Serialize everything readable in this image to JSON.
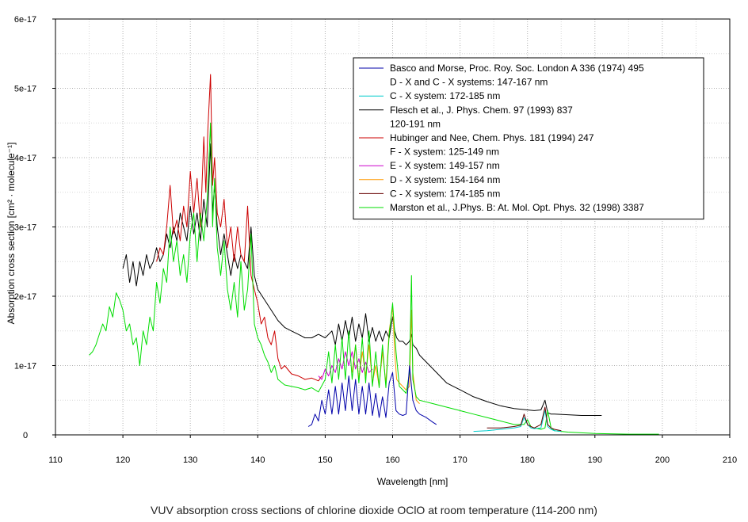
{
  "caption": "VUV absorption cross sections of chlorine dioxide OClO at room temperature (114-200 nm)",
  "chart_data": {
    "type": "line",
    "xlabel": "Wavelength [nm]",
    "ylabel": "Absorption cross section [cm² · molecule⁻¹]",
    "xlim": [
      110,
      210
    ],
    "ylim": [
      0,
      6e-17
    ],
    "x_ticks": [
      110,
      120,
      130,
      140,
      150,
      160,
      170,
      180,
      190,
      200,
      210
    ],
    "x_tick_labels": [
      "110",
      "120",
      "130",
      "140",
      "150",
      "160",
      "170",
      "180",
      "190",
      "200",
      "210"
    ],
    "y_ticks": [
      0,
      1e-17,
      2e-17,
      3e-17,
      4e-17,
      5e-17,
      6e-17
    ],
    "y_tick_labels": [
      "0",
      "1e-17",
      "2e-17",
      "3e-17",
      "4e-17",
      "5e-17",
      "6e-17"
    ],
    "grid": true,
    "legend_position": "top-right",
    "legend": [
      {
        "text": "Basco and Morse,  Proc. Roy. Soc. London A 336 (1974) 495",
        "color": "#0000aa",
        "line": true
      },
      {
        "text": "D - X and C - X systems: 147-167 nm",
        "color": "",
        "line": false
      },
      {
        "text": "C  - X system: 172-185 nm",
        "color": "#00cccc",
        "line": true
      },
      {
        "text": "Flesch et al., J. Phys. Chem. 97 (1993) 837",
        "color": "#000000",
        "line": true
      },
      {
        "text": "120-191 nm",
        "color": "",
        "line": false
      },
      {
        "text": "Hubinger and Nee,  Chem. Phys. 181 (1994) 247",
        "color": "#cc0000",
        "line": true
      },
      {
        "text": "F - X system: 125-149 nm",
        "color": "",
        "line": false
      },
      {
        "text": "E - X system: 149-157 nm",
        "color": "#cc00cc",
        "line": true
      },
      {
        "text": "D - X system: 154-164 nm",
        "color": "#ff9900",
        "line": true
      },
      {
        "text": "C - X system: 174-185 nm",
        "color": "#660000",
        "line": true
      },
      {
        "text": "Marston et al., J.Phys. B: At. Mol. Opt. Phys. 32 (1998) 3387",
        "color": "#00dd00",
        "line": true
      }
    ],
    "series": [
      {
        "name": "Flesch et al., J. Phys. Chem. 97 (1993) 837",
        "color": "#000000",
        "width": 1,
        "x": [
          120,
          120.5,
          121,
          121.5,
          122,
          122.5,
          123,
          123.5,
          124,
          124.5,
          125,
          125.5,
          126,
          126.5,
          127,
          127.5,
          128,
          128.5,
          129,
          129.5,
          130,
          130.5,
          131,
          131.5,
          132,
          132.5,
          133,
          133.3,
          133.6,
          134,
          134.5,
          135,
          135.5,
          136,
          136.5,
          137,
          137.5,
          138,
          138.5,
          139,
          139.5,
          140,
          141,
          142,
          143,
          144,
          145,
          146,
          147,
          148,
          149,
          150,
          151,
          151.5,
          152,
          152.5,
          153,
          153.5,
          154,
          154.5,
          155,
          155.5,
          156,
          156.5,
          157,
          157.5,
          158,
          158.5,
          159,
          159.5,
          160,
          160.3,
          160.6,
          161,
          161.5,
          162,
          162.5,
          162.8,
          163,
          163.5,
          164,
          165,
          166,
          167,
          168,
          169,
          170,
          172,
          174,
          176,
          178,
          180,
          181,
          182,
          182.6,
          183,
          183.5,
          184,
          186,
          188,
          191
        ],
        "y": [
          2.4e-17,
          2.6e-17,
          2.2e-17,
          2.5e-17,
          2.15e-17,
          2.5e-17,
          2.3e-17,
          2.6e-17,
          2.4e-17,
          2.5e-17,
          2.7e-17,
          2.5e-17,
          2.6e-17,
          2.9e-17,
          2.7e-17,
          3e-17,
          2.8e-17,
          3.2e-17,
          3e-17,
          2.8e-17,
          3.3e-17,
          2.9e-17,
          3.2e-17,
          2.8e-17,
          3.4e-17,
          3e-17,
          4.2e-17,
          3.2e-17,
          3.6e-17,
          3e-17,
          2.6e-17,
          2.9e-17,
          2.6e-17,
          2.3e-17,
          2.6e-17,
          2.4e-17,
          2.6e-17,
          2.5e-17,
          2.4e-17,
          3e-17,
          2.3e-17,
          2.1e-17,
          1.95e-17,
          1.8e-17,
          1.65e-17,
          1.55e-17,
          1.5e-17,
          1.45e-17,
          1.4e-17,
          1.4e-17,
          1.45e-17,
          1.4e-17,
          1.5e-17,
          1.3e-17,
          1.6e-17,
          1.35e-17,
          1.65e-17,
          1.4e-17,
          1.7e-17,
          1.35e-17,
          1.6e-17,
          1.4e-17,
          1.75e-17,
          1.35e-17,
          1.55e-17,
          1.35e-17,
          1.5e-17,
          1.35e-17,
          1.5e-17,
          1.4e-17,
          1.7e-17,
          1.5e-17,
          1.4e-17,
          1.35e-17,
          1.35e-17,
          1.3e-17,
          1.35e-17,
          1.45e-17,
          1.3e-17,
          1.25e-17,
          1.15e-17,
          1.05e-17,
          9.5e-18,
          8.5e-18,
          7.5e-18,
          7e-18,
          6.5e-18,
          5.5e-18,
          4.8e-18,
          4.2e-18,
          3.8e-18,
          3.6e-18,
          3.5e-18,
          3.6e-18,
          5e-18,
          3.2e-18,
          3e-18,
          3e-18,
          2.9e-18,
          2.8e-18,
          2.8e-18
        ]
      },
      {
        "name": "Hubinger and Nee,  Chem. Phys. 181 (1994) 247",
        "color": "#cc0000",
        "width": 1,
        "x": [
          125,
          125.5,
          126,
          126.5,
          127,
          127.5,
          128,
          128.5,
          129,
          129.5,
          130,
          130.5,
          131,
          131.5,
          132,
          132.3,
          132.6,
          133,
          133.3,
          133.6,
          134,
          134.5,
          135,
          135.5,
          136,
          136.5,
          137,
          137.5,
          138,
          138.5,
          139,
          139.5,
          140,
          140.5,
          141,
          141.5,
          142,
          142.5,
          143,
          143.5,
          144,
          145,
          146,
          147,
          148,
          149,
          149.5
        ],
        "y": [
          2.5e-17,
          2.7e-17,
          2.6e-17,
          3e-17,
          3.6e-17,
          2.9e-17,
          3.1e-17,
          2.8e-17,
          3.3e-17,
          3e-17,
          3.8e-17,
          3.2e-17,
          3.7e-17,
          3e-17,
          4.3e-17,
          3.5e-17,
          4.4e-17,
          5.2e-17,
          3.6e-17,
          4e-17,
          3.2e-17,
          3e-17,
          3.4e-17,
          2.7e-17,
          3e-17,
          2.5e-17,
          3e-17,
          2.6e-17,
          2.5e-17,
          3.3e-17,
          2.3e-17,
          2.1e-17,
          1.9e-17,
          1.6e-17,
          1.7e-17,
          1.4e-17,
          1.3e-17,
          1.5e-17,
          1.1e-17,
          9.5e-18,
          1e-17,
          8.8e-18,
          8.5e-18,
          8e-18,
          8.2e-18,
          7.8e-18,
          8.5e-18
        ]
      },
      {
        "name": "E - X system: 149-157 nm",
        "color": "#cc00cc",
        "width": 1,
        "x": [
          149,
          149.5,
          150,
          150.5,
          151,
          151.5,
          152,
          152.5,
          153,
          153.5,
          154,
          154.5,
          155,
          155.5,
          156,
          156.5,
          157
        ],
        "y": [
          8.5e-18,
          8e-18,
          9.5e-18,
          8.5e-18,
          1e-17,
          9e-18,
          1.1e-17,
          9.5e-18,
          1.2e-17,
          1e-17,
          1.2e-17,
          9.5e-18,
          1.1e-17,
          9e-18,
          1.05e-17,
          9e-18,
          9.5e-18
        ]
      },
      {
        "name": "D - X system: 154-164 nm",
        "color": "#ff9900",
        "width": 1,
        "x": [
          154,
          154.5,
          155,
          155.5,
          156,
          156.5,
          157,
          157.5,
          158,
          158.5,
          159,
          159.5,
          160,
          160.3,
          160.6,
          161,
          161.5,
          162,
          162.5,
          162.8,
          163,
          163.5,
          164
        ],
        "y": [
          9e-18,
          1.3e-17,
          8e-18,
          1.2e-17,
          8.5e-18,
          1.3e-17,
          7.5e-18,
          1e-17,
          7e-18,
          1.2e-17,
          7.5e-18,
          1.5e-17,
          1.85e-17,
          1.2e-17,
          8e-18,
          7.5e-18,
          7e-18,
          6.5e-18,
          7e-18,
          1.8e-17,
          9e-18,
          5e-18,
          4.5e-18
        ]
      },
      {
        "name": "Marston et al., J.Phys. B: At. Mol. Opt. Phys. 32 (1998) 3387",
        "color": "#00dd00",
        "width": 1,
        "x": [
          115,
          115.5,
          116,
          116.5,
          117,
          117.5,
          118,
          118.5,
          119,
          119.5,
          120,
          120.5,
          121,
          121.5,
          122,
          122.5,
          123,
          123.5,
          124,
          124.5,
          125,
          125.5,
          126,
          126.5,
          127,
          127.5,
          128,
          128.5,
          129,
          129.5,
          130,
          130.5,
          131,
          131.5,
          132,
          132.5,
          133,
          133.3,
          133.6,
          134,
          134.5,
          135,
          135.5,
          136,
          136.5,
          137,
          137.5,
          138,
          138.5,
          139,
          139.5,
          140,
          140.5,
          141,
          141.5,
          142,
          142.5,
          143,
          144,
          145,
          146,
          147,
          148,
          149,
          150,
          150.5,
          151,
          151.5,
          152,
          152.5,
          153,
          153.5,
          154,
          154.5,
          155,
          155.5,
          156,
          156.5,
          157,
          157.5,
          158,
          158.5,
          159,
          159.5,
          160,
          160.5,
          161,
          161.5,
          162,
          162.5,
          162.8,
          163,
          163.5,
          164,
          166,
          168,
          170,
          172,
          174,
          176,
          178,
          179.5,
          180,
          180.5,
          181,
          182,
          182.6,
          183,
          183.5,
          184,
          186,
          190,
          195,
          199.5
        ],
        "y": [
          1.15e-17,
          1.2e-17,
          1.3e-17,
          1.45e-17,
          1.6e-17,
          1.5e-17,
          1.85e-17,
          1.7e-17,
          2.05e-17,
          1.95e-17,
          1.8e-17,
          1.5e-17,
          1.6e-17,
          1.3e-17,
          1.4e-17,
          1e-17,
          1.5e-17,
          1.3e-17,
          1.7e-17,
          1.5e-17,
          2.2e-17,
          1.9e-17,
          2.4e-17,
          2.2e-17,
          3e-17,
          2.5e-17,
          2.8e-17,
          2.3e-17,
          2.6e-17,
          2.2e-17,
          2.9e-17,
          3.2e-17,
          2.5e-17,
          3.2e-17,
          2.8e-17,
          3.4e-17,
          4.5e-17,
          3e-17,
          3.7e-17,
          2.7e-17,
          2.3e-17,
          2.8e-17,
          2.1e-17,
          1.8e-17,
          2.2e-17,
          1.7e-17,
          2.5e-17,
          1.8e-17,
          2.1e-17,
          2.9e-17,
          1.6e-17,
          1.4e-17,
          1.3e-17,
          1.15e-17,
          1.05e-17,
          9e-18,
          1e-17,
          8e-18,
          7.2e-18,
          7e-18,
          6.8e-18,
          6.5e-18,
          6.8e-18,
          6.2e-18,
          8e-18,
          1.2e-17,
          7.5e-18,
          1.3e-17,
          8e-18,
          1.4e-17,
          8e-18,
          1.5e-17,
          8e-18,
          1.3e-17,
          7.5e-18,
          1.4e-17,
          7.5e-18,
          1.5e-17,
          7e-18,
          1.2e-17,
          6.8e-18,
          1.3e-17,
          6.8e-18,
          1.45e-17,
          1.9e-17,
          1.2e-17,
          7e-18,
          6.5e-18,
          6e-18,
          9e-18,
          2.3e-17,
          8e-18,
          5.5e-18,
          5e-18,
          4.5e-18,
          4e-18,
          3.5e-18,
          3e-18,
          2.5e-18,
          2e-18,
          1.5e-18,
          1.5e-18,
          2.2e-18,
          1.2e-18,
          1e-18,
          8e-19,
          1e-18,
          3.5e-18,
          1e-18,
          6e-19,
          4e-19,
          2e-19,
          1e-19,
          1e-19
        ]
      },
      {
        "name": "Basco and Morse,  Proc. Roy. Soc. London A 336 (1974) 495",
        "color": "#0000aa",
        "width": 1,
        "x": [
          147.5,
          148,
          148.5,
          149,
          149.5,
          150,
          150.5,
          151,
          151.5,
          152,
          152.5,
          153,
          153.5,
          154,
          154.5,
          155,
          155.5,
          156,
          156.5,
          157,
          157.5,
          158,
          158.5,
          159,
          159.5,
          160,
          160.5,
          161,
          161.5,
          162,
          162.5,
          163,
          163.5,
          164,
          165,
          166,
          166.5
        ],
        "y": [
          1.2e-18,
          1.5e-18,
          3e-18,
          2e-18,
          5e-18,
          3e-18,
          6.5e-18,
          3e-18,
          7e-18,
          3e-18,
          7.5e-18,
          3.5e-18,
          8.5e-18,
          3.5e-18,
          8e-18,
          3e-18,
          7e-18,
          3e-18,
          7.5e-18,
          2.8e-18,
          6e-18,
          2.5e-18,
          5.5e-18,
          2.5e-18,
          7.5e-18,
          9e-18,
          3.5e-18,
          3e-18,
          2.8e-18,
          3e-18,
          1e-17,
          5e-18,
          3.5e-18,
          3e-18,
          2.5e-18,
          1.8e-18,
          1.5e-18
        ]
      },
      {
        "name": "C  - X system: 172-185 nm",
        "color": "#00cccc",
        "width": 1,
        "x": [
          172,
          174,
          176,
          178,
          179,
          179.5,
          180,
          180.5,
          181,
          182,
          182.6,
          183,
          183.5,
          184,
          185
        ],
        "y": [
          5e-19,
          6e-19,
          8e-19,
          1e-18,
          1.2e-18,
          2.5e-18,
          1.5e-18,
          1e-18,
          9e-19,
          1e-18,
          3.5e-18,
          1.2e-18,
          8e-19,
          6e-19,
          5e-19
        ]
      },
      {
        "name": "C - X system: 174-185 nm",
        "color": "#660000",
        "width": 1,
        "x": [
          174,
          176,
          178,
          179,
          179.5,
          180,
          180.5,
          181,
          182,
          182.6,
          183,
          183.5,
          184,
          185
        ],
        "y": [
          1e-18,
          1e-18,
          1.2e-18,
          1.4e-18,
          3e-18,
          1.5e-18,
          1.2e-18,
          1e-18,
          1.5e-18,
          4e-18,
          1.5e-18,
          1e-18,
          8e-19,
          6e-19
        ]
      }
    ]
  }
}
